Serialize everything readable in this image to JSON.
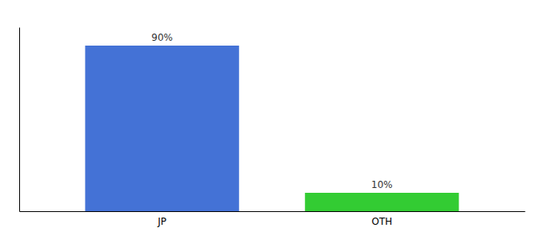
{
  "chart_data": {
    "type": "bar",
    "categories": [
      "JP",
      "OTH"
    ],
    "values": [
      90,
      10
    ],
    "value_labels": [
      "90%",
      "10%"
    ],
    "data_labels": true,
    "colors": [
      "#4472d6",
      "#33cc33"
    ],
    "ylim": [
      0,
      100
    ],
    "tick_labels": "x",
    "grid": false
  }
}
